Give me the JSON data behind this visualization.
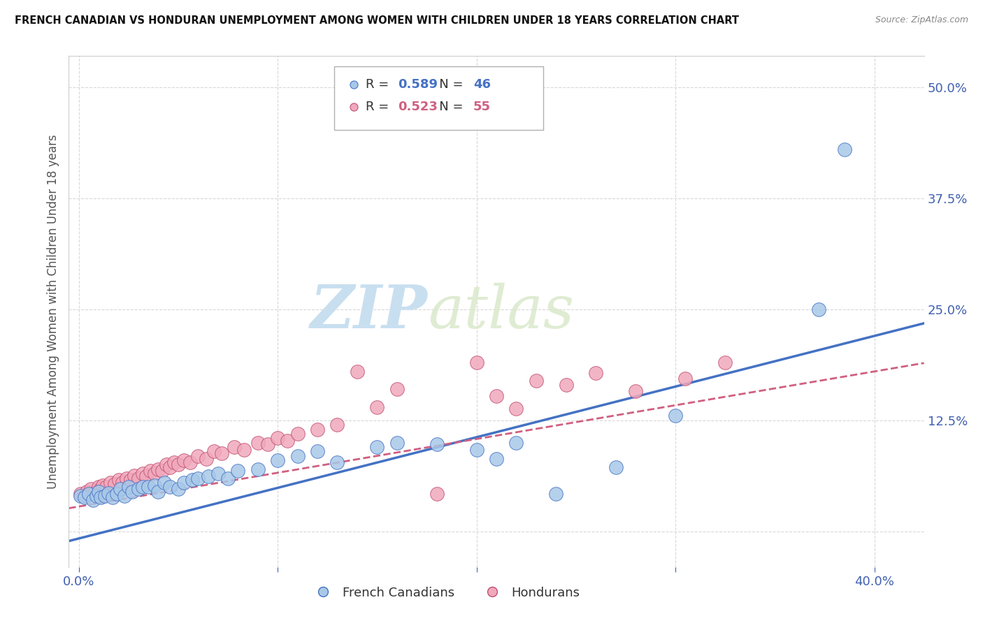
{
  "title": "FRENCH CANADIAN VS HONDURAN UNEMPLOYMENT AMONG WOMEN WITH CHILDREN UNDER 18 YEARS CORRELATION CHART",
  "source": "Source: ZipAtlas.com",
  "ylabel": "Unemployment Among Women with Children Under 18 years",
  "x_ticks": [
    0.0,
    0.1,
    0.2,
    0.3,
    0.4
  ],
  "y_ticks_right": [
    0.0,
    0.125,
    0.25,
    0.375,
    0.5
  ],
  "xlim": [
    -0.005,
    0.425
  ],
  "ylim": [
    -0.04,
    0.535
  ],
  "fc_color": "#a8c8e8",
  "fc_edge": "#4472c4",
  "hon_color": "#f0a8bc",
  "hon_edge": "#c05070",
  "fc_line_color": "#4472c4",
  "hon_line_color": "#d06080",
  "R_fc": "0.589",
  "N_fc": "46",
  "R_hon": "0.523",
  "N_hon": "55",
  "watermark_zip": "ZIP",
  "watermark_atlas": "atlas",
  "legend_fc_label": "French Canadians",
  "legend_hon_label": "Hondurans",
  "fc_line_slope": 0.57,
  "fc_line_intercept": -0.008,
  "hon_line_slope": 0.38,
  "hon_line_intercept": 0.028,
  "french_canadian_x": [
    0.001,
    0.003,
    0.005,
    0.007,
    0.009,
    0.01,
    0.011,
    0.013,
    0.015,
    0.017,
    0.019,
    0.021,
    0.023,
    0.025,
    0.027,
    0.03,
    0.032,
    0.035,
    0.038,
    0.04,
    0.043,
    0.046,
    0.05,
    0.053,
    0.057,
    0.06,
    0.065,
    0.07,
    0.075,
    0.08,
    0.09,
    0.1,
    0.11,
    0.12,
    0.13,
    0.15,
    0.16,
    0.18,
    0.2,
    0.21,
    0.22,
    0.24,
    0.27,
    0.3,
    0.372,
    0.385
  ],
  "french_canadian_y": [
    0.04,
    0.038,
    0.042,
    0.035,
    0.04,
    0.045,
    0.038,
    0.04,
    0.043,
    0.038,
    0.042,
    0.048,
    0.04,
    0.05,
    0.045,
    0.048,
    0.05,
    0.05,
    0.052,
    0.045,
    0.055,
    0.05,
    0.048,
    0.055,
    0.058,
    0.06,
    0.062,
    0.065,
    0.06,
    0.068,
    0.07,
    0.08,
    0.085,
    0.09,
    0.078,
    0.095,
    0.1,
    0.098,
    0.092,
    0.082,
    0.1,
    0.042,
    0.072,
    0.13,
    0.25,
    0.43
  ],
  "honduran_x": [
    0.001,
    0.003,
    0.004,
    0.006,
    0.008,
    0.01,
    0.011,
    0.012,
    0.014,
    0.016,
    0.018,
    0.02,
    0.022,
    0.024,
    0.026,
    0.028,
    0.03,
    0.032,
    0.034,
    0.036,
    0.038,
    0.04,
    0.042,
    0.044,
    0.046,
    0.048,
    0.05,
    0.053,
    0.056,
    0.06,
    0.064,
    0.068,
    0.072,
    0.078,
    0.083,
    0.09,
    0.095,
    0.1,
    0.105,
    0.11,
    0.12,
    0.13,
    0.14,
    0.15,
    0.16,
    0.18,
    0.2,
    0.21,
    0.22,
    0.23,
    0.245,
    0.26,
    0.28,
    0.305,
    0.325
  ],
  "honduran_y": [
    0.042,
    0.04,
    0.045,
    0.048,
    0.043,
    0.05,
    0.048,
    0.052,
    0.05,
    0.055,
    0.053,
    0.058,
    0.055,
    0.06,
    0.058,
    0.063,
    0.06,
    0.065,
    0.062,
    0.068,
    0.065,
    0.07,
    0.068,
    0.075,
    0.072,
    0.078,
    0.075,
    0.08,
    0.078,
    0.085,
    0.082,
    0.09,
    0.088,
    0.095,
    0.092,
    0.1,
    0.098,
    0.105,
    0.102,
    0.11,
    0.115,
    0.12,
    0.18,
    0.14,
    0.16,
    0.042,
    0.19,
    0.152,
    0.138,
    0.17,
    0.165,
    0.178,
    0.158,
    0.172,
    0.19
  ]
}
